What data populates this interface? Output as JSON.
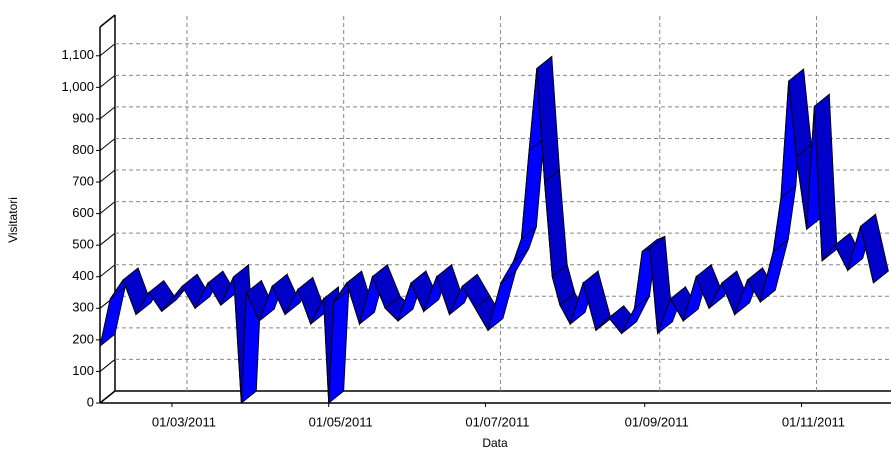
{
  "chart_data": {
    "type": "line3d",
    "x_label": "Data",
    "y_label": "Visitatori",
    "x": [
      "01/02/2011",
      "05/02/2011",
      "10/02/2011",
      "15/02/2011",
      "20/02/2011",
      "25/02/2011",
      "01/03/2011",
      "05/03/2011",
      "10/03/2011",
      "15/03/2011",
      "20/03/2011",
      "25/03/2011",
      "28/03/2011",
      "30/03/2011",
      "04/04/2011",
      "09/04/2011",
      "14/04/2011",
      "19/04/2011",
      "24/04/2011",
      "29/04/2011",
      "01/05/2011",
      "03/05/2011",
      "08/05/2011",
      "13/05/2011",
      "18/05/2011",
      "23/05/2011",
      "28/05/2011",
      "02/06/2011",
      "07/06/2011",
      "12/06/2011",
      "17/06/2011",
      "22/06/2011",
      "27/06/2011",
      "02/07/2011",
      "07/07/2011",
      "12/07/2011",
      "15/07/2011",
      "18/07/2011",
      "21/07/2011",
      "24/07/2011",
      "27/07/2011",
      "30/07/2011",
      "03/08/2011",
      "08/08/2011",
      "13/08/2011",
      "18/08/2011",
      "23/08/2011",
      "28/08/2011",
      "31/08/2011",
      "03/09/2011",
      "06/09/2011",
      "11/09/2011",
      "16/09/2011",
      "21/09/2011",
      "26/09/2011",
      "01/10/2011",
      "06/10/2011",
      "11/10/2011",
      "16/10/2011",
      "21/10/2011",
      "24/10/2011",
      "27/10/2011",
      "30/10/2011",
      "03/11/2011",
      "06/11/2011",
      "09/11/2011",
      "14/11/2011",
      "19/11/2011",
      "24/11/2011",
      "29/11/2011"
    ],
    "series": [
      {
        "name": "Visitatori",
        "color": "#0000ff",
        "values": [
          180,
          330,
          390,
          280,
          350,
          290,
          330,
          370,
          300,
          380,
          310,
          400,
          0,
          350,
          260,
          370,
          280,
          360,
          250,
          330,
          0,
          320,
          380,
          250,
          400,
          300,
          260,
          380,
          290,
          400,
          280,
          370,
          300,
          230,
          380,
          450,
          520,
          800,
          1060,
          700,
          400,
          310,
          250,
          380,
          230,
          270,
          220,
          300,
          480,
          490,
          220,
          330,
          260,
          400,
          300,
          380,
          280,
          390,
          320,
          480,
          650,
          1020,
          780,
          550,
          940,
          450,
          500,
          420,
          560,
          380
        ]
      }
    ],
    "xlim": [
      "01/02/2011",
      "30/11/2011"
    ],
    "xticks": [
      "01/03/2011",
      "01/05/2011",
      "01/07/2011",
      "01/09/2011",
      "01/11/2011"
    ],
    "ylim": [
      0,
      1150
    ],
    "yticks": [
      0,
      100,
      200,
      300,
      400,
      500,
      600,
      700,
      800,
      900,
      {
        "value": 1000,
        "label": "1,000"
      },
      {
        "value": 1100,
        "label": "1,100"
      }
    ],
    "grid": true
  }
}
